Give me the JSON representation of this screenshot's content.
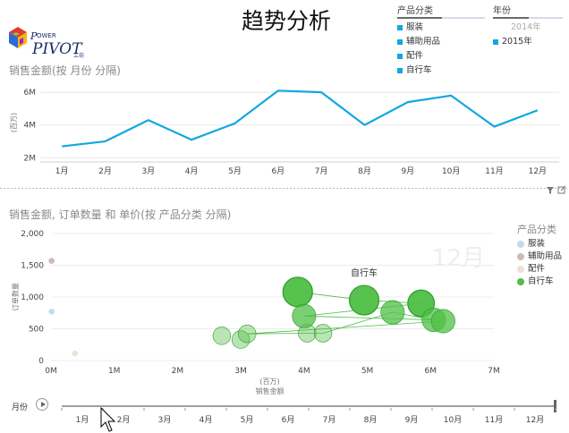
{
  "header": {
    "title": "趋势分析",
    "logo_alt": "Power Pivot 工坊"
  },
  "slicers": {
    "category": {
      "title": "产品分类",
      "items": [
        {
          "label": "服装",
          "selected": true
        },
        {
          "label": "辅助用品",
          "selected": true
        },
        {
          "label": "配件",
          "selected": true
        },
        {
          "label": "自行车",
          "selected": true
        }
      ]
    },
    "year": {
      "title": "年份",
      "items": [
        {
          "label": "2014年",
          "selected": false
        },
        {
          "label": "2015年",
          "selected": true
        }
      ]
    }
  },
  "line_section": {
    "title": "销售金额(按 月份 分隔)"
  },
  "scatter_section": {
    "title": "销售金额, 订单数量 和 单价(按 产品分类 分隔)",
    "watermark": "12月",
    "annotation": "自行车"
  },
  "legend": {
    "title": "产品分类",
    "items": [
      {
        "label": "服装",
        "color": "#c6d9e6"
      },
      {
        "label": "辅助用品",
        "color": "#cbbbb5"
      },
      {
        "label": "配件",
        "color": "#ece1d5"
      },
      {
        "label": "自行车",
        "color": "#4fbf45"
      }
    ]
  },
  "play_axis": {
    "label": "月份",
    "months": [
      "1月",
      "2月",
      "3月",
      "4月",
      "5月",
      "6月",
      "7月",
      "8月",
      "9月",
      "10月",
      "11月",
      "12月"
    ]
  },
  "colors": {
    "line": "#13a7e0",
    "bike": "#4fbf45",
    "bike_dark": "#2e9b2a",
    "accent": "#13a7e0"
  },
  "chart_data": [
    {
      "type": "line",
      "title": "销售金额(按 月份 分隔)",
      "ylabel": "(百万)",
      "categories": [
        "1月",
        "2月",
        "3月",
        "4月",
        "5月",
        "6月",
        "7月",
        "8月",
        "9月",
        "10月",
        "11月",
        "12月"
      ],
      "values": [
        2.7,
        3.0,
        4.3,
        3.1,
        4.1,
        6.1,
        6.0,
        4.0,
        5.4,
        5.8,
        3.9,
        4.9
      ],
      "yticks": [
        2,
        4,
        6
      ],
      "ytick_labels": [
        "2M",
        "4M",
        "6M"
      ],
      "ylim": [
        1.8,
        6.5
      ]
    },
    {
      "type": "scatter",
      "title": "销售金额, 订单数量 和 单价(按 产品分类 分隔)",
      "xlabel": "销售金额",
      "xunit": "(百万)",
      "ylabel": "订单数量",
      "xticks": [
        0,
        1,
        2,
        3,
        4,
        5,
        6,
        7
      ],
      "xtick_labels": [
        "0M",
        "1M",
        "2M",
        "3M",
        "4M",
        "5M",
        "6M",
        "7M"
      ],
      "yticks": [
        0,
        500,
        1000,
        1500,
        2000
      ],
      "ytick_labels": [
        "0",
        "500",
        "1,000",
        "1,500",
        "2,000"
      ],
      "xlim": [
        0,
        7
      ],
      "ylim": [
        0,
        2000
      ],
      "series": [
        {
          "name": "服装",
          "points": [
            {
              "x": 0.01,
              "y": 770,
              "size": 1
            }
          ]
        },
        {
          "name": "辅助用品",
          "points": [
            {
              "x": 0.01,
              "y": 1570,
              "size": 1
            }
          ]
        },
        {
          "name": "配件",
          "points": [
            {
              "x": 0.38,
              "y": 110,
              "size": 1
            }
          ]
        },
        {
          "name": "自行车",
          "points": [
            {
              "x": 2.7,
              "y": 390,
              "size": 3
            },
            {
              "x": 3.0,
              "y": 330,
              "size": 3
            },
            {
              "x": 3.1,
              "y": 420,
              "size": 3
            },
            {
              "x": 4.05,
              "y": 430,
              "size": 3
            },
            {
              "x": 4.3,
              "y": 430,
              "size": 3
            },
            {
              "x": 3.9,
              "y": 1080,
              "size": 5
            },
            {
              "x": 4.0,
              "y": 700,
              "size": 4
            },
            {
              "x": 4.95,
              "y": 950,
              "size": 5
            },
            {
              "x": 5.4,
              "y": 760,
              "size": 4
            },
            {
              "x": 5.85,
              "y": 900,
              "size": 4.5
            },
            {
              "x": 6.05,
              "y": 640,
              "size": 4
            },
            {
              "x": 6.2,
              "y": 620,
              "size": 4
            }
          ],
          "trail": [
            [
              3.9,
              1080
            ],
            [
              4.95,
              950
            ],
            [
              5.85,
              900
            ],
            [
              4.0,
              700
            ],
            [
              6.05,
              640
            ],
            [
              5.4,
              760
            ],
            [
              4.3,
              430
            ],
            [
              4.05,
              430
            ],
            [
              3.1,
              420
            ],
            [
              6.2,
              620
            ]
          ]
        }
      ]
    }
  ]
}
